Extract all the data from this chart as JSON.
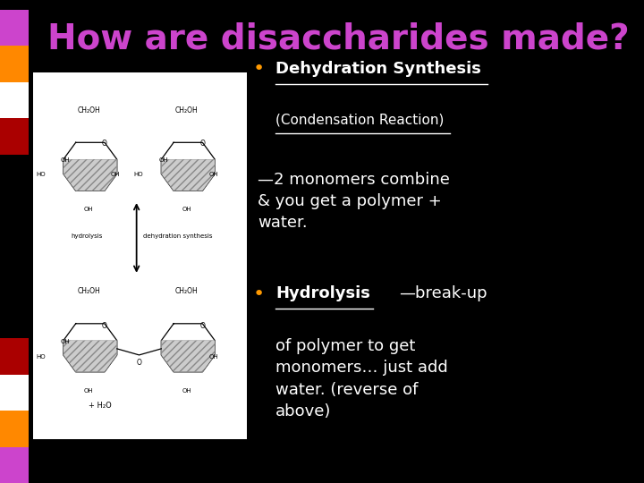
{
  "background_color": "#000000",
  "title": "How are disaccharides made?",
  "title_color": "#cc44cc",
  "title_fontsize": 28,
  "bullet1_label": "Dehydration Synthesis",
  "bullet1_sub": "(Condensation Reaction)",
  "bullet1_body": "—2 monomers combine\n& you get a polymer +\nwater.",
  "bullet2_label": "Hydrolysis",
  "bullet2_body_inline": "—break-up",
  "bullet2_body_rest": "of polymer to get\nmonomers… just add\nwater. (reverse of\nabove)",
  "bullet_color": "#ff9900",
  "text_color": "#ffffff",
  "sidebar_top_colors": [
    "#cc44cc",
    "#ff8800",
    "#ffffff",
    "#aa0000"
  ],
  "sidebar_bot_colors": [
    "#aa0000",
    "#ffffff",
    "#ff8800",
    "#cc44cc"
  ],
  "image_bg": "#ffffff"
}
